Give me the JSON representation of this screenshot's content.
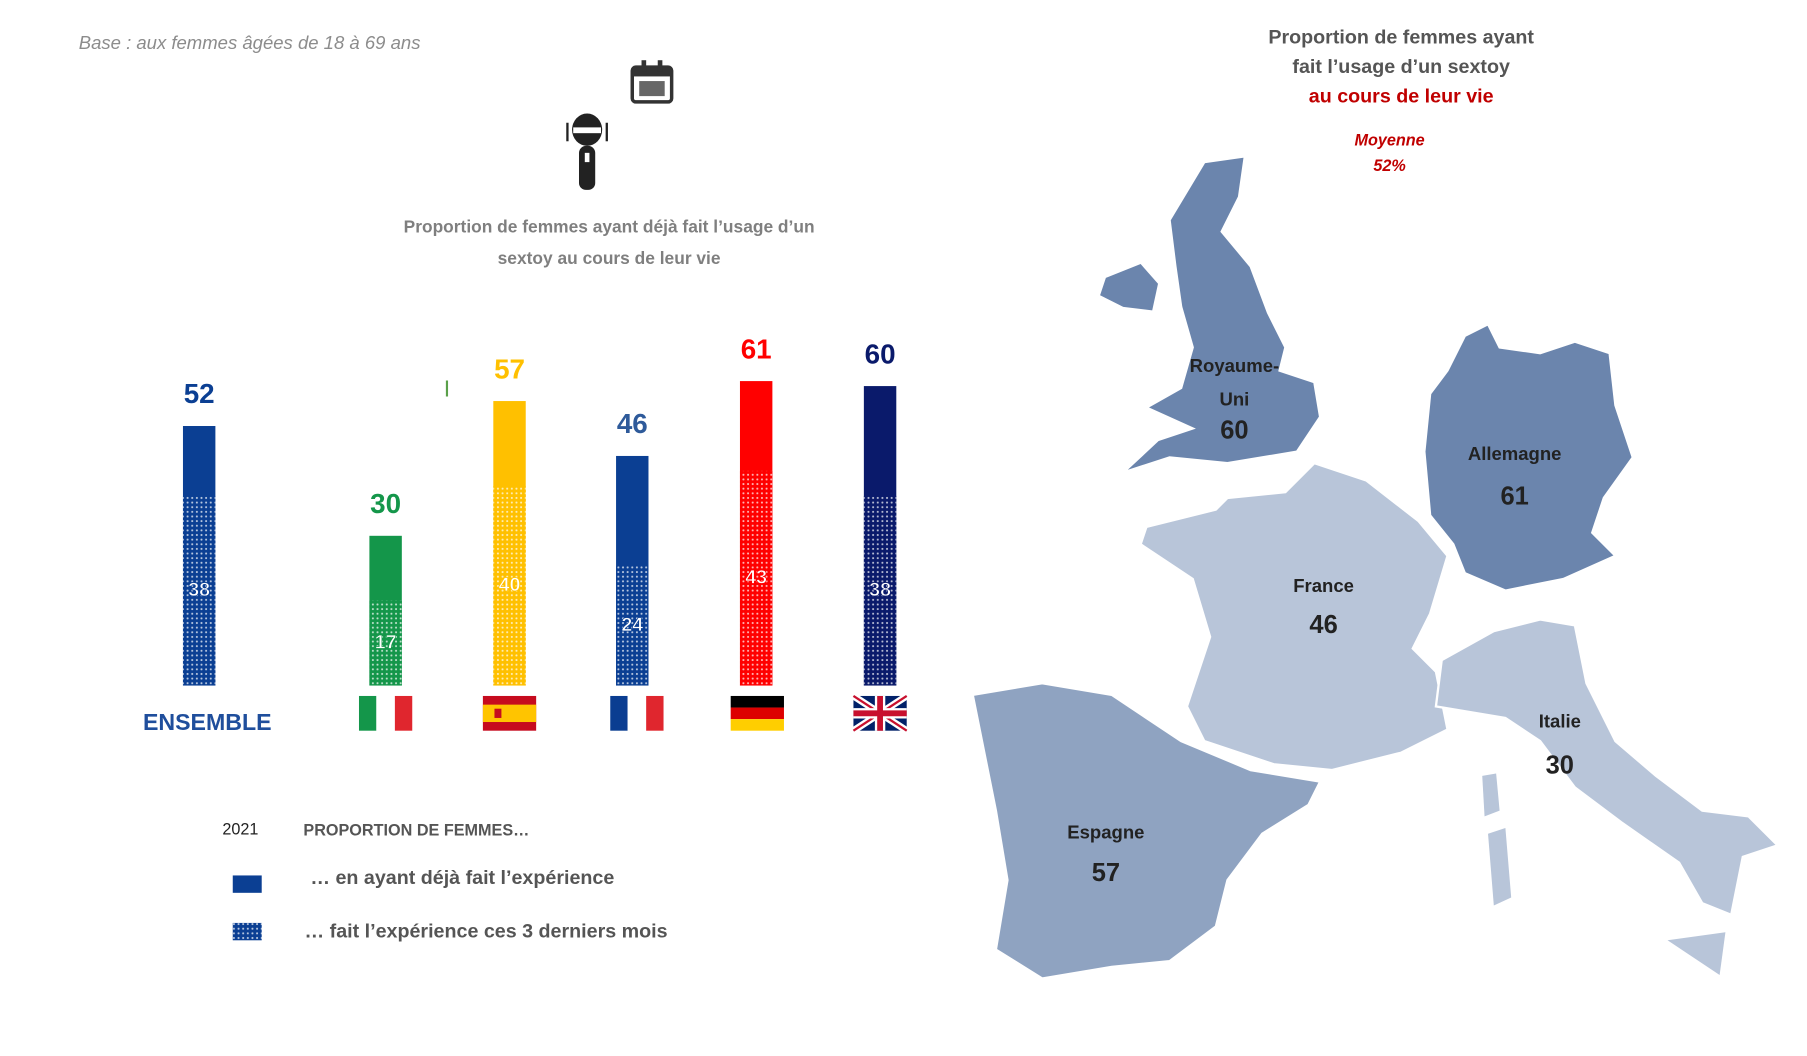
{
  "note_base": "Base :  aux femmes âgées de 18 à 69 ans",
  "chart_data": [
    {
      "type": "bar",
      "title_lines": [
        "Proportion de femmes ayant déjà fait l’usage d’un",
        "sextoy au cours de leur vie"
      ],
      "annotations": [
        "I"
      ],
      "categories": [
        "ENSEMBLE",
        null,
        null,
        null,
        null,
        null
      ],
      "bar_colors": [
        "#0b3f93",
        "#14964a",
        "#ffc000",
        "#0b3f93",
        "#ff0000",
        "#0a1a6b"
      ],
      "label_colors": [
        "#0b3f93",
        "#14964a",
        "#ffc000",
        "#2e5a9a",
        "#ff0000",
        "#0a1a6b"
      ],
      "legend_year": "2021",
      "legend_title": "PROPORTION DE FEMMES…",
      "series": [
        {
          "name": "… en ayant déjà fait l’expérience",
          "color": "#0b3f93",
          "values": [
            52,
            30,
            57,
            46,
            61,
            60
          ]
        },
        {
          "name": "… fait l’expérience ces 3 derniers mois",
          "color": "#0b3f93",
          "pattern": "dotted",
          "values": [
            38,
            17,
            40,
            24,
            43,
            38
          ]
        }
      ]
    },
    {
      "type": "map",
      "title_lines": [
        "Proportion de femmes ayant",
        "fait l’usage d’un sextoy",
        "au cours de leur vie"
      ],
      "average_label": "Moyenne",
      "average": 52,
      "average_label_value": "52%",
      "regions": [
        {
          "name_lines": [
            "Royaume-",
            "Uni"
          ],
          "value": 60,
          "color": "#6b85ad"
        },
        {
          "name_lines": [
            "Allemagne"
          ],
          "value": 61,
          "color": "#6b85ad"
        },
        {
          "name_lines": [
            "France"
          ],
          "value": 46,
          "color": "#b8c5d9"
        },
        {
          "name_lines": [
            "Italie"
          ],
          "value": 30,
          "color": "#b8c5d9"
        },
        {
          "name_lines": [
            "Espagne"
          ],
          "value": 57,
          "color": "#8fa3c1"
        }
      ]
    }
  ]
}
